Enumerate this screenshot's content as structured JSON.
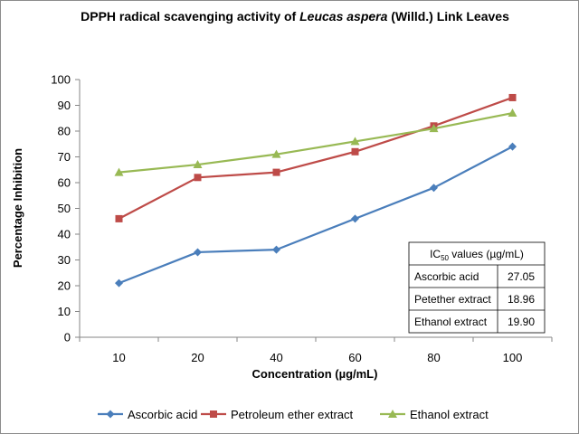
{
  "chart_data": {
    "type": "line",
    "title_parts": [
      "DPPH radical scavenging activity of ",
      "Leucas aspera",
      " (Willd.) Link Leaves"
    ],
    "xlabel": "Concentration (µg/mL)",
    "ylabel": "Percentage Inhibition",
    "categories": [
      "10",
      "20",
      "40",
      "60",
      "80",
      "100"
    ],
    "ylim": [
      0,
      100
    ],
    "yticks": [
      0,
      10,
      20,
      30,
      40,
      50,
      60,
      70,
      80,
      90,
      100
    ],
    "grid": false,
    "legend_position": "bottom",
    "series": [
      {
        "name": "Ascorbic acid",
        "color": "#4a7ebb",
        "marker": "diamond",
        "values": [
          21,
          33,
          34,
          46,
          58,
          74
        ]
      },
      {
        "name": "Petroleum ether extract",
        "color": "#be4b48",
        "marker": "square",
        "values": [
          46,
          62,
          64,
          72,
          82,
          93
        ]
      },
      {
        "name": "Ethanol extract",
        "color": "#98b954",
        "marker": "triangle",
        "values": [
          64,
          67,
          71,
          76,
          81,
          87
        ]
      }
    ]
  },
  "ic50_table": {
    "header_prefix": "IC",
    "header_sub": "50",
    "header_suffix": " values (µg/mL)",
    "rows": [
      {
        "label": "Ascorbic acid",
        "value": "27.05"
      },
      {
        "label": "Petether extract",
        "value": "18.96"
      },
      {
        "label": "Ethanol extract",
        "value": "19.90"
      }
    ]
  }
}
